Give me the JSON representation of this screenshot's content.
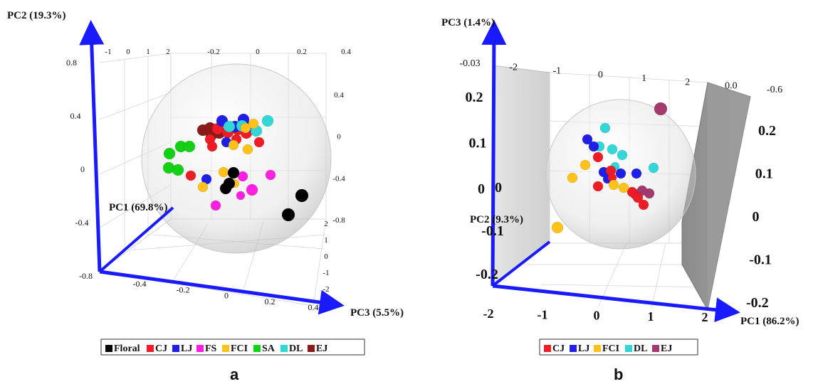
{
  "chart_data": [
    {
      "type": "scatter",
      "panel": "a",
      "axes": {
        "pc1": {
          "label": "PC1 (69.8%)",
          "ticks": [
            "-1",
            "0",
            "1",
            "2"
          ]
        },
        "pc2": {
          "label": "PC2 (19.3%)",
          "ticks": [
            "0.8",
            "0.4",
            "0",
            "-0.4",
            "-0.8"
          ]
        },
        "pc3": {
          "label": "PC3 (5.5%)",
          "ticks": [
            "-0.4",
            "-0.2",
            "0",
            "0.2",
            "0.4"
          ]
        },
        "top_ticks": [
          "-0.2",
          "0",
          "0.2",
          "0.4"
        ],
        "right_ticks": [
          "0.4",
          "0",
          "-0.4",
          "-0.8"
        ],
        "right_small_ticks": [
          "2",
          "1",
          "0",
          "-1",
          "-2"
        ]
      },
      "legend": {
        "placement": "bottom",
        "entries": [
          {
            "name": "Floral",
            "color": "#000000"
          },
          {
            "name": "CJ",
            "color": "#ee1c25"
          },
          {
            "name": "LJ",
            "color": "#1f1fe6"
          },
          {
            "name": "FS",
            "color": "#ff1fe0"
          },
          {
            "name": "FCI",
            "color": "#ffc21a"
          },
          {
            "name": "SA",
            "color": "#14d014"
          },
          {
            "name": "DL",
            "color": "#33d6d6"
          },
          {
            "name": "EJ",
            "color": "#8b1a1a"
          }
        ]
      }
    },
    {
      "type": "scatter",
      "panel": "b",
      "axes": {
        "pc1": {
          "label": "PC1 (86.2%)",
          "ticks": [
            "-2",
            "-1",
            "0",
            "1",
            "2"
          ]
        },
        "pc2": {
          "label": "PC2 (9.3%)",
          "ticks": [
            "0",
            "-0.1",
            "-0.2"
          ]
        },
        "pc3": {
          "label": "PC3 (1.4%)",
          "ticks": [
            "0.2",
            "0.1",
            "0",
            "-0.1",
            "-0.2"
          ]
        },
        "left_ticks": [
          "0.2",
          "0.1",
          "0"
        ],
        "top_ticks": [
          "-0.03",
          "-2",
          "-1",
          "0",
          "1",
          "2",
          "0.0",
          "-0.6"
        ],
        "right_ticks": [
          "0.2",
          "0.1",
          "0",
          "-0.1",
          "-0.2"
        ]
      },
      "legend": {
        "placement": "bottom",
        "entries": [
          {
            "name": "CJ",
            "color": "#ee1c25"
          },
          {
            "name": "LJ",
            "color": "#1f1fe6"
          },
          {
            "name": "FCI",
            "color": "#ffc21a"
          },
          {
            "name": "DL",
            "color": "#33d6d6"
          },
          {
            "name": "EJ",
            "color": "#a23a6e"
          }
        ]
      }
    }
  ],
  "panel_labels": [
    "a",
    "b"
  ]
}
